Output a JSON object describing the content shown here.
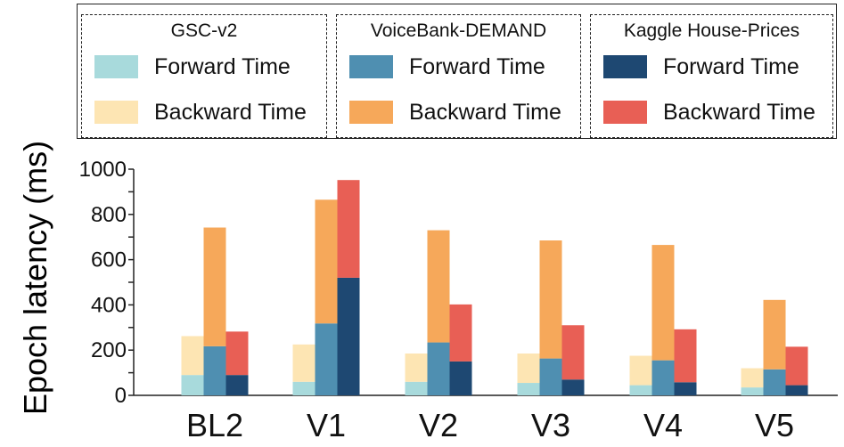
{
  "chart_data": {
    "type": "bar",
    "stacked": true,
    "ylabel": "Epoch latency (ms)",
    "xlabel": "",
    "ylim": [
      0,
      1000
    ],
    "yticks": [
      0,
      200,
      400,
      600,
      800,
      1000
    ],
    "categories": [
      "BL2",
      "V1",
      "V2",
      "V3",
      "V4",
      "V5"
    ],
    "groups": [
      {
        "name": "GSC-v2",
        "forward_label": "Forward Time",
        "backward_label": "Backward Time",
        "forward_color": "#a8dadc",
        "backward_color": "#fde5b3",
        "forward": [
          90,
          60,
          60,
          55,
          45,
          35
        ],
        "total": [
          262,
          225,
          185,
          185,
          175,
          120
        ]
      },
      {
        "name": "VoiceBank-DEMAND",
        "forward_label": "Forward Time",
        "backward_label": "Backward Time",
        "forward_color": "#4f8fb1",
        "backward_color": "#f6a85a",
        "forward": [
          217,
          318,
          234,
          163,
          155,
          115
        ],
        "total": [
          742,
          865,
          730,
          685,
          665,
          422
        ]
      },
      {
        "name": "Kaggle House-Prices",
        "forward_label": "Forward Time",
        "backward_label": "Backward Time",
        "forward_color": "#1e4872",
        "backward_color": "#e85f55",
        "forward": [
          90,
          520,
          150,
          70,
          58,
          45
        ],
        "total": [
          282,
          952,
          402,
          310,
          292,
          215
        ]
      }
    ]
  }
}
